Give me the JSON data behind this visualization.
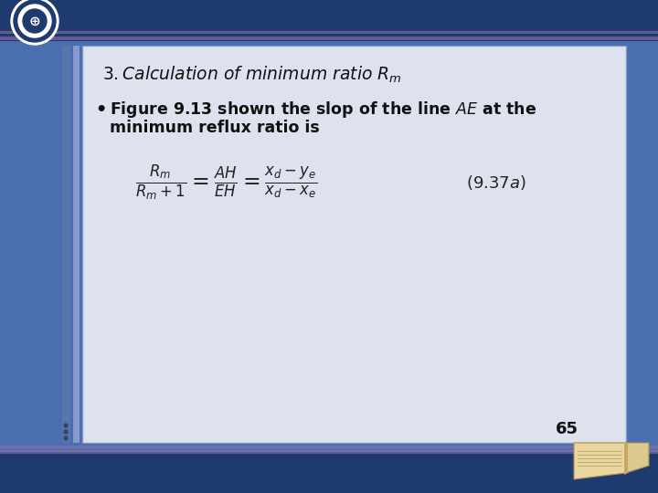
{
  "page_num": "65",
  "bg_color": "#4a6eb0",
  "header_dark": "#1e3a6e",
  "header_purple": "#9070a8",
  "panel_color": "#dde2ee",
  "panel_border": "#8899bb",
  "bar1_color": "#5577aa",
  "bar2_color": "#8899cc",
  "title_color": "#111111",
  "text_color": "#111111",
  "eq_color": "#222222",
  "page_color": "#111111",
  "logo_outer": "#ffffff",
  "logo_inner": "#1e3a6e",
  "logo_mid": "#ffffff"
}
